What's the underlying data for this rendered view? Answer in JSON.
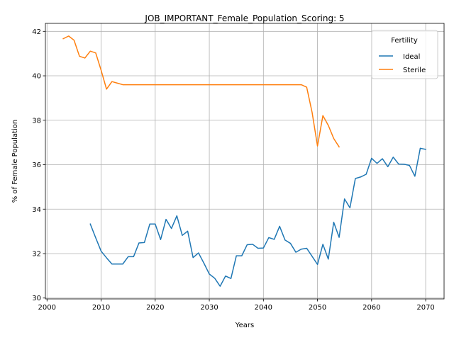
{
  "chart_data": {
    "type": "line",
    "title": "JOB_IMPORTANT_Female_Population_Scoring: 5",
    "xlabel": "Years",
    "ylabel": "% of Female Population",
    "xlim": [
      1999.7,
      2073.4
    ],
    "ylim": [
      29.96,
      42.36
    ],
    "xticks": [
      2000,
      2010,
      2020,
      2030,
      2040,
      2050,
      2060,
      2070
    ],
    "yticks": [
      30,
      32,
      34,
      36,
      38,
      40,
      42
    ],
    "grid": true,
    "legend": {
      "title": "Fertility",
      "position": "top-right"
    },
    "series": [
      {
        "name": "Ideal",
        "color": "#1f77b4",
        "x": [
          2008,
          2009,
          2010,
          2011,
          2012,
          2013,
          2014,
          2015,
          2016,
          2017,
          2018,
          2019,
          2020,
          2021,
          2022,
          2023,
          2024,
          2025,
          2026,
          2027,
          2028,
          2029,
          2030,
          2031,
          2032,
          2033,
          2034,
          2035,
          2036,
          2037,
          2038,
          2039,
          2040,
          2041,
          2042,
          2043,
          2044,
          2045,
          2046,
          2047,
          2048,
          2049,
          2050,
          2051,
          2052,
          2053,
          2054,
          2055,
          2056,
          2057,
          2058,
          2059,
          2060,
          2061,
          2062,
          2063,
          2064,
          2065,
          2066,
          2067,
          2068,
          2069,
          2070
        ],
        "y": [
          33.33,
          32.71,
          32.11,
          31.81,
          31.53,
          31.53,
          31.53,
          31.86,
          31.86,
          32.48,
          32.5,
          33.33,
          33.33,
          32.63,
          33.54,
          33.13,
          33.7,
          32.82,
          33.01,
          31.82,
          32.03,
          31.57,
          31.08,
          30.89,
          30.53,
          30.99,
          30.88,
          31.9,
          31.9,
          32.4,
          32.42,
          32.24,
          32.25,
          32.72,
          32.64,
          33.23,
          32.61,
          32.46,
          32.06,
          32.2,
          32.24,
          31.88,
          31.51,
          32.42,
          31.75,
          33.41,
          32.73,
          34.46,
          34.06,
          35.38,
          35.45,
          35.57,
          36.29,
          36.06,
          36.27,
          35.91,
          36.34,
          36.03,
          36.02,
          35.97,
          35.48,
          36.74,
          36.69
        ]
      },
      {
        "name": "Sterile",
        "color": "#ff7f0e",
        "x": [
          2003,
          2004,
          2005,
          2006,
          2007,
          2008,
          2009,
          2010,
          2011,
          2012,
          2013,
          2014,
          2015,
          2016,
          2017,
          2018,
          2019,
          2020,
          2021,
          2022,
          2023,
          2024,
          2025,
          2026,
          2027,
          2028,
          2029,
          2030,
          2031,
          2032,
          2033,
          2034,
          2035,
          2036,
          2037,
          2038,
          2039,
          2040,
          2041,
          2042,
          2043,
          2044,
          2045,
          2046,
          2047,
          2048,
          2049,
          2050,
          2051,
          2052,
          2053,
          2054
        ],
        "y": [
          41.67,
          41.79,
          41.6,
          40.88,
          40.8,
          41.11,
          41.03,
          40.25,
          39.4,
          39.74,
          39.67,
          39.6,
          39.6,
          39.6,
          39.6,
          39.6,
          39.6,
          39.6,
          39.6,
          39.6,
          39.6,
          39.6,
          39.6,
          39.6,
          39.6,
          39.6,
          39.6,
          39.6,
          39.6,
          39.6,
          39.6,
          39.6,
          39.6,
          39.6,
          39.6,
          39.6,
          39.6,
          39.6,
          39.6,
          39.6,
          39.6,
          39.6,
          39.6,
          39.6,
          39.6,
          39.49,
          38.36,
          36.84,
          38.21,
          37.77,
          37.18,
          36.8
        ]
      }
    ]
  }
}
